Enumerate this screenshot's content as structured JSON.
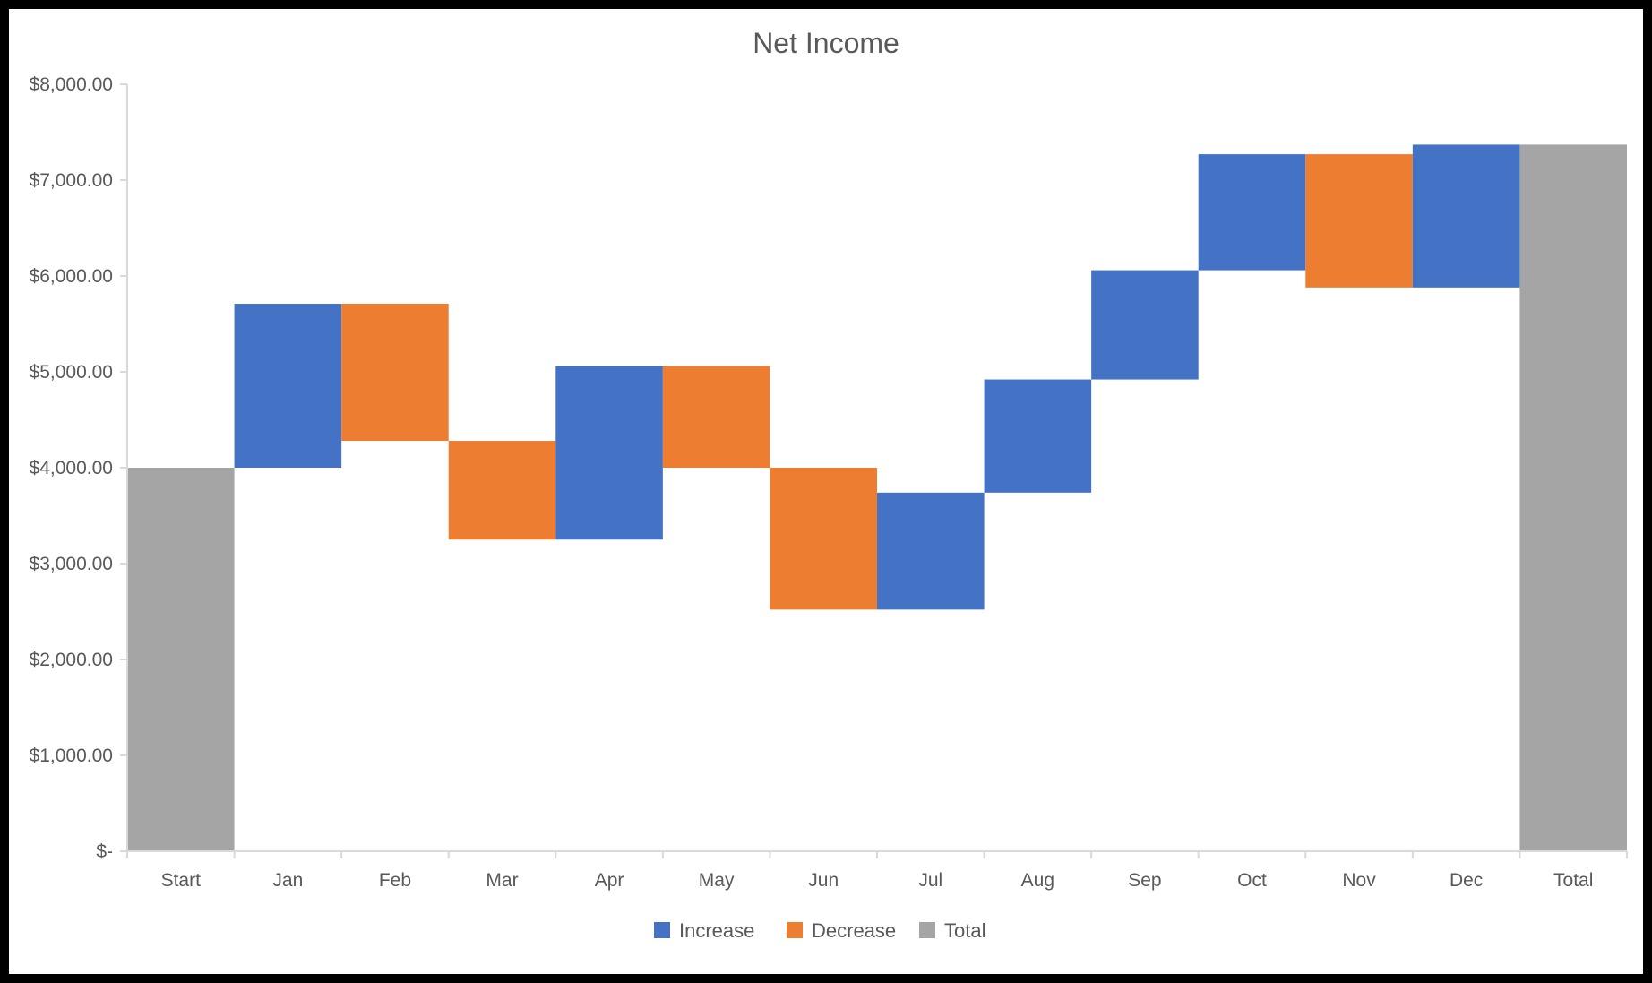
{
  "chart_data": {
    "type": "waterfall",
    "title": "Net Income",
    "xlabel": "",
    "ylabel": "",
    "categories": [
      "Start",
      "Jan",
      "Feb",
      "Mar",
      "Apr",
      "May",
      "Jun",
      "Jul",
      "Aug",
      "Sep",
      "Oct",
      "Nov",
      "Dec",
      "Total"
    ],
    "bars": [
      {
        "category": "Start",
        "kind": "total",
        "low": 0,
        "high": 4000
      },
      {
        "category": "Jan",
        "kind": "increase",
        "low": 4000,
        "high": 5710
      },
      {
        "category": "Feb",
        "kind": "decrease",
        "low": 4280,
        "high": 5710
      },
      {
        "category": "Mar",
        "kind": "decrease",
        "low": 3250,
        "high": 4280
      },
      {
        "category": "Apr",
        "kind": "increase",
        "low": 3250,
        "high": 5060
      },
      {
        "category": "May",
        "kind": "decrease",
        "low": 4000,
        "high": 5060
      },
      {
        "category": "Jun",
        "kind": "decrease",
        "low": 2520,
        "high": 4000
      },
      {
        "category": "Jul",
        "kind": "increase",
        "low": 2520,
        "high": 3740
      },
      {
        "category": "Aug",
        "kind": "increase",
        "low": 3740,
        "high": 4920
      },
      {
        "category": "Sep",
        "kind": "increase",
        "low": 4920,
        "high": 6060
      },
      {
        "category": "Oct",
        "kind": "increase",
        "low": 6060,
        "high": 7270
      },
      {
        "category": "Nov",
        "kind": "decrease",
        "low": 5880,
        "high": 7270
      },
      {
        "category": "Dec",
        "kind": "increase",
        "low": 5880,
        "high": 7370
      },
      {
        "category": "Total",
        "kind": "total",
        "low": 0,
        "high": 7370
      }
    ],
    "ylim": [
      0,
      8000
    ],
    "yticks": [
      0,
      1000,
      2000,
      3000,
      4000,
      5000,
      6000,
      7000,
      8000
    ],
    "ytick_labels": [
      "$-",
      "$1,000.00",
      "$2,000.00",
      "$3,000.00",
      "$4,000.00",
      "$5,000.00",
      "$6,000.00",
      "$7,000.00",
      "$8,000.00"
    ],
    "grid": false,
    "legend": {
      "placement": "bottom",
      "entries": [
        {
          "key": "increase",
          "label": "Increase"
        },
        {
          "key": "decrease",
          "label": "Decrease"
        },
        {
          "key": "total",
          "label": "Total"
        }
      ]
    },
    "colors": {
      "increase": "#4472C4",
      "decrease": "#ED7D31",
      "total": "#A5A5A5",
      "axis": "#D9D9D9",
      "text": "#595959",
      "frame": "#000000"
    }
  }
}
